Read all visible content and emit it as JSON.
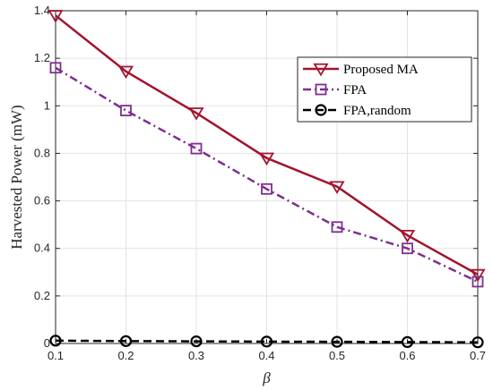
{
  "chart_data": {
    "type": "line",
    "xlabel": "β",
    "ylabel": "Harvested Power (mW)",
    "x": [
      0.1,
      0.2,
      0.3,
      0.4,
      0.5,
      0.6,
      0.7
    ],
    "xlim": [
      0.1,
      0.7
    ],
    "ylim": [
      0,
      1.4
    ],
    "xticks": [
      "0.1",
      "0.2",
      "0.3",
      "0.4",
      "0.5",
      "0.6",
      "0.7"
    ],
    "yticks": [
      "0",
      "0.2",
      "0.4",
      "0.6",
      "0.8",
      "1",
      "1.2",
      "1.4"
    ],
    "grid": true,
    "legend_position": "top-right",
    "series": [
      {
        "name": "Proposed MA",
        "values": [
          1.38,
          1.145,
          0.97,
          0.78,
          0.66,
          0.455,
          0.29
        ],
        "color": "#A2142F",
        "marker": "triangle-down",
        "line": "solid"
      },
      {
        "name": "FPA",
        "values": [
          1.16,
          0.98,
          0.82,
          0.65,
          0.49,
          0.4,
          0.26
        ],
        "color": "#7E2F8E",
        "marker": "square",
        "line": "dash-dot"
      },
      {
        "name": "FPA,random",
        "values": [
          0.012,
          0.01,
          0.009,
          0.008,
          0.007,
          0.006,
          0.005
        ],
        "color": "#000000",
        "marker": "circle",
        "line": "dashed"
      }
    ]
  }
}
